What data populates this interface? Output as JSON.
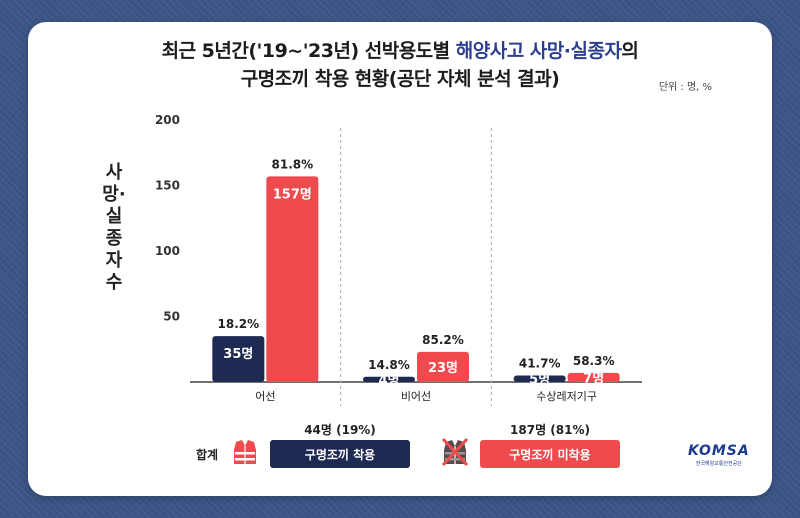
{
  "title": {
    "line1_prefix": "최근 5년간('19~'23년) 선박용도별 ",
    "line1_highlight": "해양사고 사망·실종자",
    "line1_suffix": "의",
    "line2": "구명조끼 착용 현황(공단 자체 분석 결과)"
  },
  "unit": "단위 : 명, %",
  "ylabel": "사망·실종자 수",
  "colors": {
    "worn": "#1f2a52",
    "not_worn": "#ef4b4f",
    "highlight": "#2d3e8f"
  },
  "chart_data": {
    "type": "bar",
    "categories": [
      "어선",
      "비어선",
      "수상레저기구"
    ],
    "ylim": [
      0,
      200
    ],
    "yticks": [
      50,
      100,
      150,
      200
    ],
    "grid": "vertical dashed separators between categories",
    "series": [
      {
        "name": "구명조끼 착용",
        "values": [
          35,
          4,
          5
        ],
        "value_labels": [
          "35명",
          "4명",
          "5명"
        ],
        "pct_labels": [
          "18.2%",
          "14.8%",
          "41.7%"
        ]
      },
      {
        "name": "구명조끼 미착용",
        "values": [
          157,
          23,
          7
        ],
        "value_labels": [
          "157명",
          "23명",
          "7명"
        ],
        "pct_labels": [
          "81.8%",
          "85.2%",
          "58.3%"
        ]
      }
    ]
  },
  "legend": {
    "total_label": "합계",
    "worn": {
      "label": "구명조끼 착용",
      "value": "44명 (19%)"
    },
    "not_worn": {
      "label": "구명조끼 미착용",
      "value": "187명 (81%)"
    }
  },
  "logo": {
    "name": "KOMSA",
    "sub": "한국해양교통안전공단"
  }
}
